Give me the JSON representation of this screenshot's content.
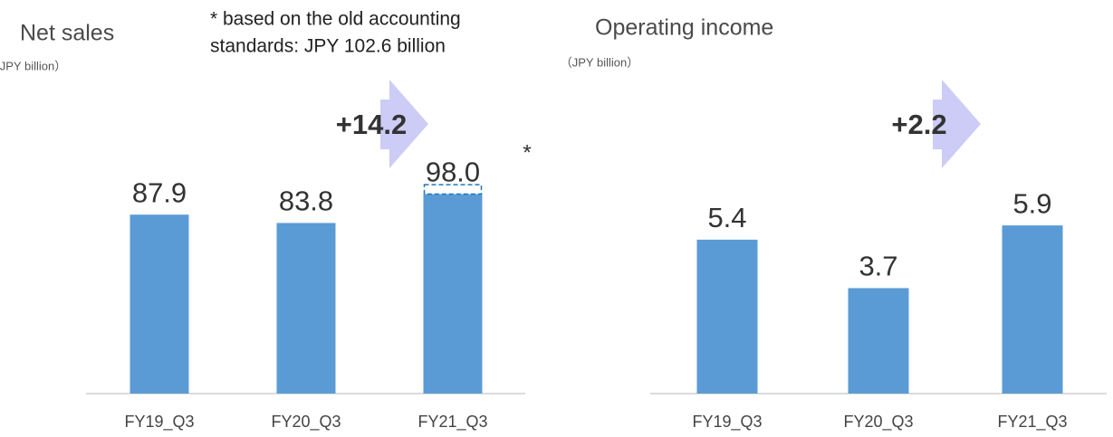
{
  "chart_data": [
    {
      "type": "bar",
      "title": "Net sales",
      "subtitle": "（JPY billion）",
      "categories": [
        "FY19_Q3",
        "FY20_Q3",
        "FY21_Q3"
      ],
      "values": [
        87.9,
        83.8,
        98.0
      ],
      "value_labels": [
        "87.9",
        "83.8",
        "98.0"
      ],
      "color": "#5b9bd5",
      "ylim": [
        0,
        140
      ],
      "change_label": "+14.2",
      "annotation": [
        "* based on the old accounting",
        "standards: JPY 102.6 billion"
      ],
      "reference_value": 102.6,
      "reference_marker": "*"
    },
    {
      "type": "bar",
      "title": "Operating income",
      "subtitle": "（JPY billion）",
      "categories": [
        "FY19_Q3",
        "FY20_Q3",
        "FY21_Q3"
      ],
      "values": [
        5.4,
        3.7,
        5.9
      ],
      "value_labels": [
        "5.4",
        "3.7",
        "5.9"
      ],
      "color": "#5b9bd5",
      "ylim": [
        0,
        10
      ],
      "change_label": "+2.2"
    }
  ]
}
